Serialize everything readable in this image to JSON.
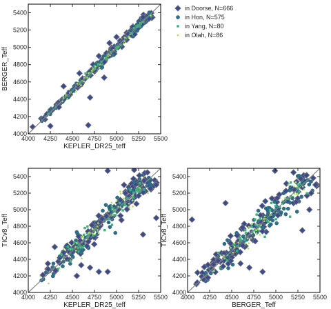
{
  "colors": {
    "doorse": "#3b4a8c",
    "doorse_edge": "#7a7a7a",
    "hon": "#2e6f8a",
    "yang": "#35b779",
    "olah": "#a8e05a",
    "identity_line": "#888888",
    "axis": "#000000"
  },
  "legend": {
    "placement": "top-right",
    "entries": [
      {
        "label": "in Doorse, N=666",
        "marker": "diamond",
        "color_key": "doorse"
      },
      {
        "label": "in Hon, N=575",
        "marker": "circle",
        "color_key": "hon"
      },
      {
        "label": "in Yang, N=80",
        "marker": "square",
        "color_key": "yang"
      },
      {
        "label": "in Olah, N=86",
        "marker": "dot",
        "color_key": "olah"
      }
    ]
  },
  "chart_data": [
    {
      "type": "scatter",
      "panel": "top-left",
      "xlabel": "KEPLER_DR25_teff",
      "ylabel": "BERGER_Teff",
      "xlim": [
        4000,
        5500
      ],
      "ylim": [
        4000,
        5500
      ],
      "xticks": [
        4000,
        4250,
        4500,
        4750,
        5000,
        5250,
        5500
      ],
      "yticks": [
        4000,
        4200,
        4400,
        4600,
        4800,
        5000,
        5200,
        5400
      ],
      "identity_line": true,
      "grid": false,
      "spread": 40,
      "outliers": [
        [
          4250,
          4090
        ],
        [
          4680,
          4100
        ],
        [
          4700,
          4420
        ],
        [
          4920,
          5050
        ],
        [
          5000,
          5120
        ],
        [
          4580,
          4700
        ],
        [
          4860,
          4650
        ],
        [
          4050,
          4080
        ],
        [
          4400,
          4550
        ],
        [
          5300,
          5350
        ],
        [
          4800,
          4900
        ]
      ]
    },
    {
      "type": "scatter",
      "panel": "bottom-left",
      "xlabel": "KEPLER_DR25_teff",
      "ylabel": "TICv8_Teff",
      "xlim": [
        4000,
        5500
      ],
      "ylim": [
        4000,
        5500
      ],
      "xticks": [
        4000,
        4250,
        4500,
        4750,
        5000,
        5250,
        5500
      ],
      "yticks": [
        4000,
        4200,
        4400,
        4600,
        4800,
        5000,
        5200,
        5400
      ],
      "identity_line": true,
      "grid": false,
      "spread": 130,
      "outliers": [
        [
          4900,
          5470
        ],
        [
          5200,
          5480
        ],
        [
          5450,
          5300
        ],
        [
          5100,
          5200
        ],
        [
          4700,
          4300
        ],
        [
          4800,
          4250
        ],
        [
          4600,
          4330
        ],
        [
          4550,
          4200
        ],
        [
          4900,
          4250
        ],
        [
          5300,
          4700
        ],
        [
          5450,
          4900
        ],
        [
          5350,
          5450
        ],
        [
          4300,
          4550
        ],
        [
          4400,
          4480
        ]
      ]
    },
    {
      "type": "scatter",
      "panel": "bottom-right",
      "xlabel": "BERGER_Teff",
      "ylabel": "TICv8_Teff",
      "xlim": [
        4000,
        5500
      ],
      "ylim": [
        4000,
        5500
      ],
      "xticks": [
        4000,
        4250,
        4500,
        4750,
        5000,
        5250,
        5500
      ],
      "yticks": [
        4000,
        4200,
        4400,
        4600,
        4800,
        5000,
        5200,
        5400
      ],
      "identity_line": true,
      "grid": false,
      "spread": 140,
      "outliers": [
        [
          4050,
          4880
        ],
        [
          4430,
          5080
        ],
        [
          4990,
          5470
        ],
        [
          5200,
          5450
        ],
        [
          5450,
          5300
        ],
        [
          5400,
          5200
        ],
        [
          4100,
          4100
        ],
        [
          4110,
          4120
        ],
        [
          4700,
          4300
        ],
        [
          4850,
          4250
        ],
        [
          4600,
          4350
        ],
        [
          5300,
          4750
        ],
        [
          5380,
          5000
        ]
      ]
    }
  ]
}
